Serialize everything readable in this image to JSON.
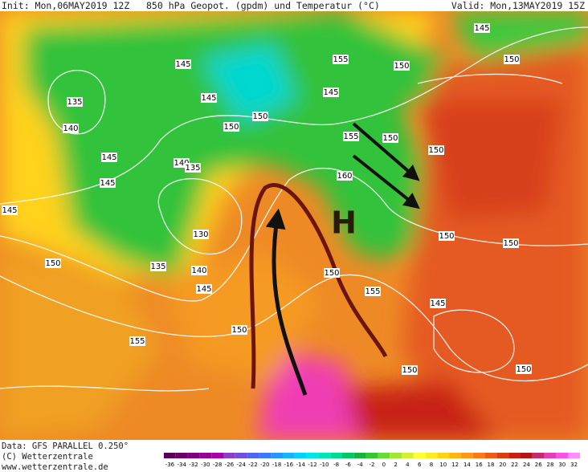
{
  "header": {
    "init": "Init: Mon,06MAY2019 12Z",
    "title": "850 hPa Geopot. (gpdm) und Temperatur (°C)",
    "valid": "Valid: Mon,13MAY2019 15Z"
  },
  "map": {
    "high_label": "H",
    "contour_labels": [
      145,
      155,
      145,
      150,
      135,
      145,
      145,
      150,
      150,
      150,
      140,
      155,
      150,
      150,
      145,
      140,
      135,
      145,
      160,
      145,
      130,
      150,
      150,
      150,
      135,
      140,
      145,
      150,
      155,
      145,
      150,
      155,
      150,
      150
    ]
  },
  "colorbar": {
    "ticks": [
      -36,
      -34,
      -32,
      -30,
      -28,
      -26,
      -24,
      -22,
      -20,
      -18,
      -16,
      -14,
      -12,
      -10,
      -8,
      -6,
      -4,
      -2,
      0,
      2,
      4,
      6,
      8,
      10,
      12,
      14,
      16,
      18,
      20,
      22,
      24,
      26,
      28,
      30,
      32
    ],
    "colors": [
      "#5a005a",
      "#6e006e",
      "#820082",
      "#960096",
      "#aa00aa",
      "#8c3cc8",
      "#6e50dc",
      "#5064f0",
      "#3c78ff",
      "#2896ff",
      "#14b4ff",
      "#00d2ff",
      "#00e6e6",
      "#00e6b4",
      "#00dc8c",
      "#00c864",
      "#14b43c",
      "#32c832",
      "#64dc32",
      "#a0e632",
      "#d2f032",
      "#ffff32",
      "#ffeb1e",
      "#ffd214",
      "#ffb414",
      "#ff9614",
      "#ff7814",
      "#f05a14",
      "#dc3c14",
      "#c81e14",
      "#b41414",
      "#c8286e",
      "#e63cb4",
      "#ff50e6",
      "#ff8cff"
    ]
  },
  "footer": {
    "data": "Data: GFS PARALLEL 0.250°",
    "copyright": "(C) Wetterzentrale",
    "url": "www.wetterzentrale.de"
  }
}
